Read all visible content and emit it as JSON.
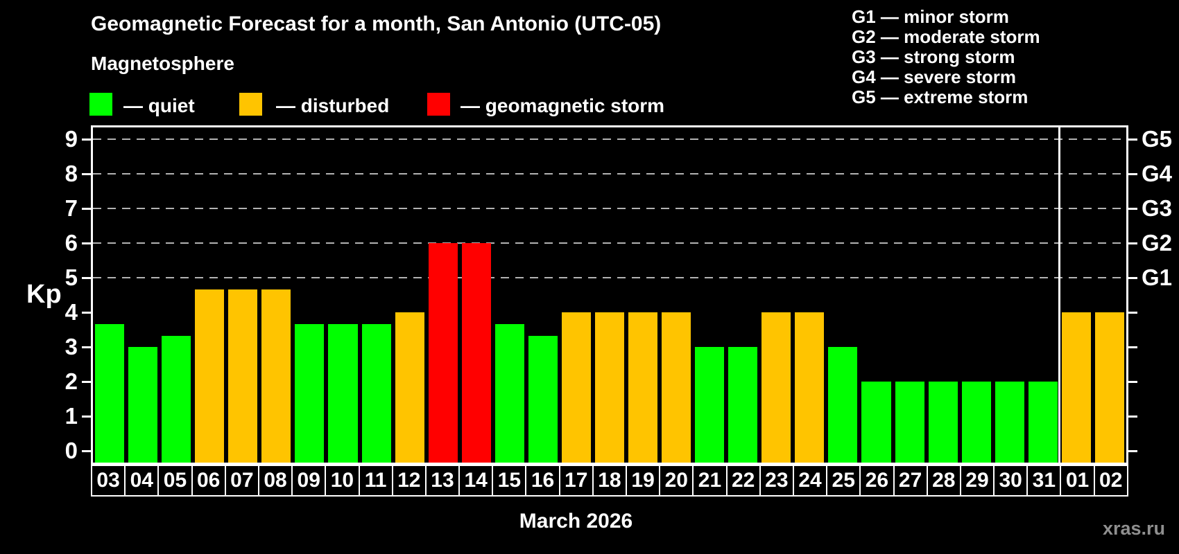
{
  "header": {
    "title": "Geomagnetic Forecast for a month, San Antonio (UTC-05)",
    "subtitle": "Magnetosphere"
  },
  "legend": {
    "items": [
      {
        "status": "quiet",
        "label": "— quiet",
        "color": "#00ff00"
      },
      {
        "status": "disturbed",
        "label": "— disturbed",
        "color": "#ffc400"
      },
      {
        "status": "storm",
        "label": "— geomagnetic storm",
        "color": "#ff0000"
      }
    ]
  },
  "storm_legend": {
    "lines": [
      "G1 — minor storm",
      "G2 — moderate storm",
      "G3 — strong storm",
      "G4 — severe storm",
      "G5 — extreme storm"
    ]
  },
  "axis": {
    "kp_label": "Kp"
  },
  "footer": {
    "month_label": "March 2026",
    "watermark": "xras.ru"
  },
  "chart_data": {
    "type": "bar",
    "title": "Geomagnetic Forecast for a month, San Antonio (UTC-05)",
    "ylabel": "Kp",
    "xlabel": "March 2026",
    "ylim": [
      0,
      9
    ],
    "yticks": [
      0,
      1,
      2,
      3,
      4,
      5,
      6,
      7,
      8,
      9
    ],
    "grid_levels": [
      {
        "kp": 5,
        "label": "G1"
      },
      {
        "kp": 6,
        "label": "G2"
      },
      {
        "kp": 7,
        "label": "G3"
      },
      {
        "kp": 8,
        "label": "G4"
      },
      {
        "kp": 9,
        "label": "G5"
      }
    ],
    "categories": [
      "03",
      "04",
      "05",
      "06",
      "07",
      "08",
      "09",
      "10",
      "11",
      "12",
      "13",
      "14",
      "15",
      "16",
      "17",
      "18",
      "19",
      "20",
      "21",
      "22",
      "23",
      "24",
      "25",
      "26",
      "27",
      "28",
      "29",
      "30",
      "31",
      "01",
      "02"
    ],
    "series": [
      {
        "name": "Kp forecast",
        "values": [
          3.67,
          3.0,
          3.33,
          4.67,
          4.67,
          4.67,
          3.67,
          3.67,
          3.67,
          4.0,
          6.0,
          6.0,
          3.67,
          3.33,
          4.0,
          4.0,
          4.0,
          4.0,
          3.0,
          3.0,
          4.0,
          4.0,
          3.0,
          2.0,
          2.0,
          2.0,
          2.0,
          2.0,
          2.0,
          4.0,
          4.0
        ]
      }
    ],
    "statuses": [
      "quiet",
      "quiet",
      "quiet",
      "disturbed",
      "disturbed",
      "disturbed",
      "quiet",
      "quiet",
      "quiet",
      "disturbed",
      "storm",
      "storm",
      "quiet",
      "quiet",
      "disturbed",
      "disturbed",
      "disturbed",
      "disturbed",
      "quiet",
      "quiet",
      "disturbed",
      "disturbed",
      "quiet",
      "quiet",
      "quiet",
      "quiet",
      "quiet",
      "quiet",
      "quiet",
      "disturbed",
      "disturbed"
    ],
    "status_colors": {
      "quiet": "#00ff00",
      "disturbed": "#ffc400",
      "storm": "#ff0000"
    },
    "month_separator_after_index": 28,
    "legend_position": "top",
    "grid": "dashed horizontal at G1–G5 levels only"
  }
}
